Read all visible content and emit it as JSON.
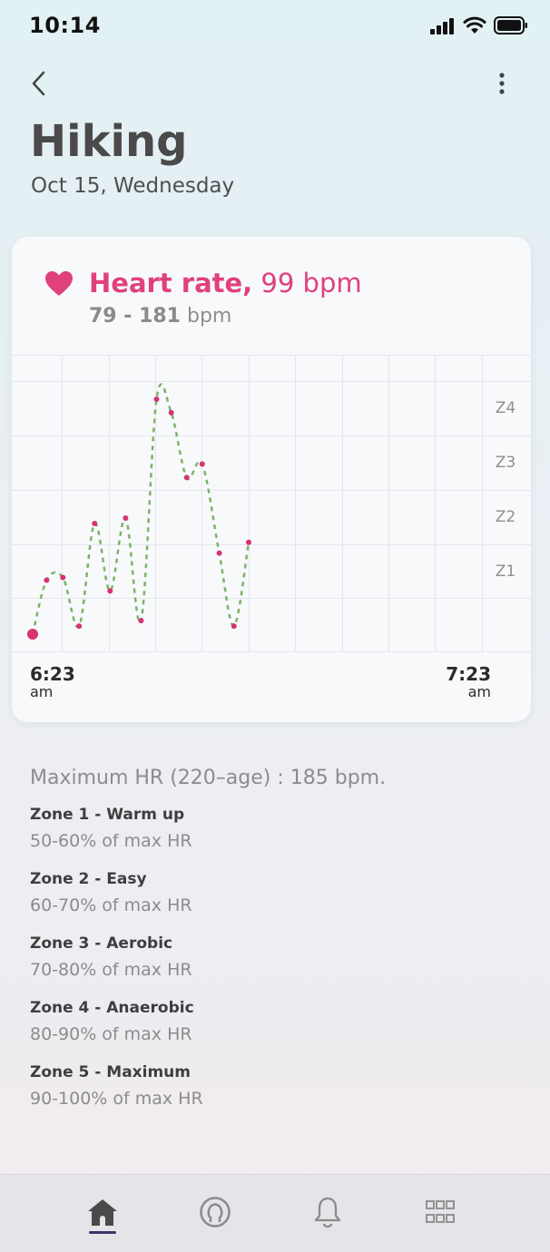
{
  "status_bar": {
    "time": "10:14",
    "icons": [
      "cellular-signal-icon",
      "wifi-icon",
      "battery-icon"
    ]
  },
  "header": {
    "back_icon": "chevron-left-icon",
    "menu_icon": "more-vertical-icon",
    "title": "Hiking",
    "date": "Oct 15, Wednesday"
  },
  "heart_rate_card": {
    "icon": "heart-icon",
    "title_prefix": "Heart rate,",
    "title_value": "99 bpm",
    "range_value": "79 - 181",
    "range_unit": "bpm",
    "zone_labels": [
      "Z4",
      "Z3",
      "Z2",
      "Z1"
    ],
    "start_time": "6:23",
    "start_period": "am",
    "end_time": "7:23",
    "end_period": "am",
    "colors": {
      "accent": "#e0417d",
      "line": "#7db36a",
      "point": "#d8336f"
    }
  },
  "chart_data": {
    "type": "line",
    "title": "Heart rate, 99 bpm",
    "xlabel": "",
    "ylabel": "",
    "x_ticks": [
      "6:23 am",
      "7:23 am"
    ],
    "y_zone_labels": [
      {
        "label": "Z1",
        "bpm": 111
      },
      {
        "label": "Z2",
        "bpm": 130
      },
      {
        "label": "Z3",
        "bpm": 148
      },
      {
        "label": "Z4",
        "bpm": 167
      }
    ],
    "xlim": [
      0,
      60
    ],
    "ylim": [
      75,
      185
    ],
    "series": [
      {
        "name": "Heart rate",
        "x_minutes": [
          0,
          1.8,
          3.9,
          6.0,
          8.0,
          10.0,
          12.0,
          14.0,
          16.0,
          17.9,
          19.9,
          21.9,
          24.1,
          26.0,
          27.9
        ],
        "values": [
          79,
          99,
          100,
          82,
          120,
          95,
          122,
          84,
          166,
          161,
          137,
          142,
          109,
          82,
          113
        ]
      }
    ]
  },
  "zones_info": {
    "max_hr": "Maximum HR (220–age) : 185 bpm.",
    "zones": [
      {
        "title": "Zone 1 - Warm up",
        "desc": "50-60% of max HR"
      },
      {
        "title": "Zone 2 - Easy",
        "desc": "60-70% of max HR"
      },
      {
        "title": "Zone 3 - Aerobic",
        "desc": "70-80% of max HR"
      },
      {
        "title": "Zone 4 - Anaerobic",
        "desc": "80-90% of max HR"
      },
      {
        "title": "Zone 5 - Maximum",
        "desc": "90-100% of max HR"
      }
    ]
  },
  "bottom_nav": {
    "items": [
      "home-icon",
      "profile-icon",
      "notifications-icon",
      "apps-grid-icon"
    ],
    "active": "home-icon"
  }
}
